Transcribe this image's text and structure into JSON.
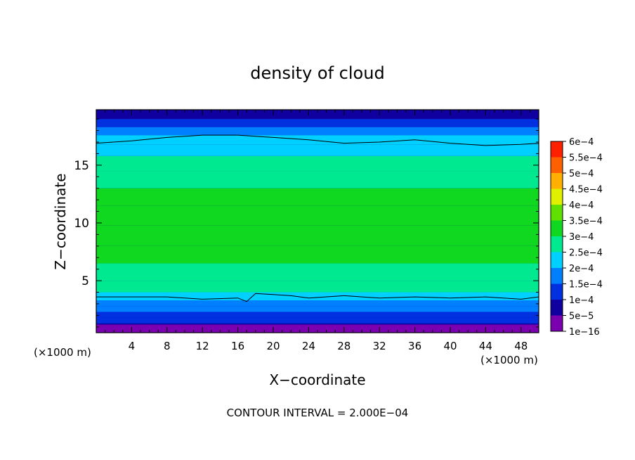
{
  "chart_data": {
    "type": "heatmap",
    "title": "density of cloud",
    "xlabel": "X−coordinate",
    "ylabel": "Z−coordinate",
    "x_unit": "(×1000 m)",
    "y_unit": "(×1000 m)",
    "footer": "CONTOUR INTERVAL = 2.000E−04",
    "xlim": [
      0,
      50
    ],
    "ylim": [
      0.5,
      19.8
    ],
    "x_ticks": [
      4,
      8,
      12,
      16,
      20,
      24,
      28,
      32,
      36,
      40,
      44,
      48
    ],
    "y_ticks": [
      5,
      10,
      15
    ],
    "colorbar": {
      "levels": [
        1e-16,
        5e-05,
        0.0001,
        0.00015,
        0.0002,
        0.00025,
        0.0003,
        0.00035,
        0.0004,
        0.00045,
        0.0005,
        0.00055,
        0.0006
      ],
      "labels": [
        "1e−16",
        "5e−5",
        "1e−4",
        "1.5e−4",
        "2e−4",
        "2.5e−4",
        "3e−4",
        "3.5e−4",
        "4e−4",
        "4.5e−4",
        "5e−4",
        "5.5e−4",
        "6e−4"
      ],
      "colors": [
        "#7a00b0",
        "#1000a0",
        "#0030e0",
        "#0080ff",
        "#00d0ff",
        "#00e890",
        "#10d820",
        "#60e000",
        "#e0f000",
        "#ffb000",
        "#ff6000",
        "#ff2000",
        "#ff9090"
      ]
    },
    "z_levels": [
      0.8,
      1.3,
      1.8,
      2.3,
      2.8,
      3.3,
      4.0,
      5.0,
      6.5,
      8.0,
      9.8,
      11.5,
      13.0,
      14.5,
      15.8,
      16.8,
      17.6,
      18.3,
      19.0,
      19.8
    ],
    "density_profile": [
      5e-05,
      6e-05,
      0.0001,
      0.00013,
      0.00016,
      0.00019,
      0.00022,
      0.00025,
      0.00029,
      0.00032,
      0.00034,
      0.00033,
      0.0003,
      0.00028,
      0.000255,
      0.000235,
      0.0002,
      0.00016,
      0.00012,
      9e-05
    ],
    "contour_lines": [
      {
        "level": 0.0002,
        "x": [
          0,
          4,
          8,
          12,
          16,
          17,
          18,
          20,
          22,
          24,
          28,
          32,
          36,
          40,
          44,
          48,
          50
        ],
        "z": [
          3.6,
          3.6,
          3.6,
          3.4,
          3.5,
          3.2,
          3.9,
          3.8,
          3.7,
          3.5,
          3.7,
          3.5,
          3.6,
          3.5,
          3.6,
          3.4,
          3.6
        ]
      },
      {
        "level": 0.0002,
        "x": [
          0,
          4,
          8,
          12,
          16,
          20,
          24,
          28,
          32,
          36,
          40,
          44,
          48,
          50
        ],
        "z": [
          16.9,
          17.1,
          17.4,
          17.6,
          17.6,
          17.4,
          17.2,
          16.9,
          17.0,
          17.2,
          16.9,
          16.7,
          16.8,
          16.9
        ]
      }
    ]
  }
}
